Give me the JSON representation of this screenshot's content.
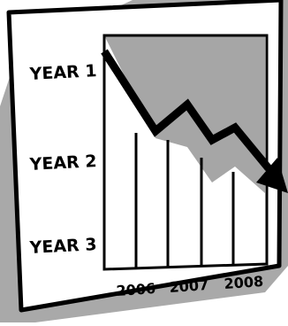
{
  "y_labels": [
    "YEAR 1",
    "YEAR 2",
    "YEAR 3"
  ],
  "x_labels": [
    "2006",
    "2007",
    "2008"
  ],
  "colors": {
    "background": "#ffffff",
    "card": "#ffffff",
    "shadow": "#a9a9a9",
    "plot_fill": "#a6a6a6",
    "ink": "#000000"
  },
  "icons": [
    "downward-trend-arrow-icon"
  ]
}
